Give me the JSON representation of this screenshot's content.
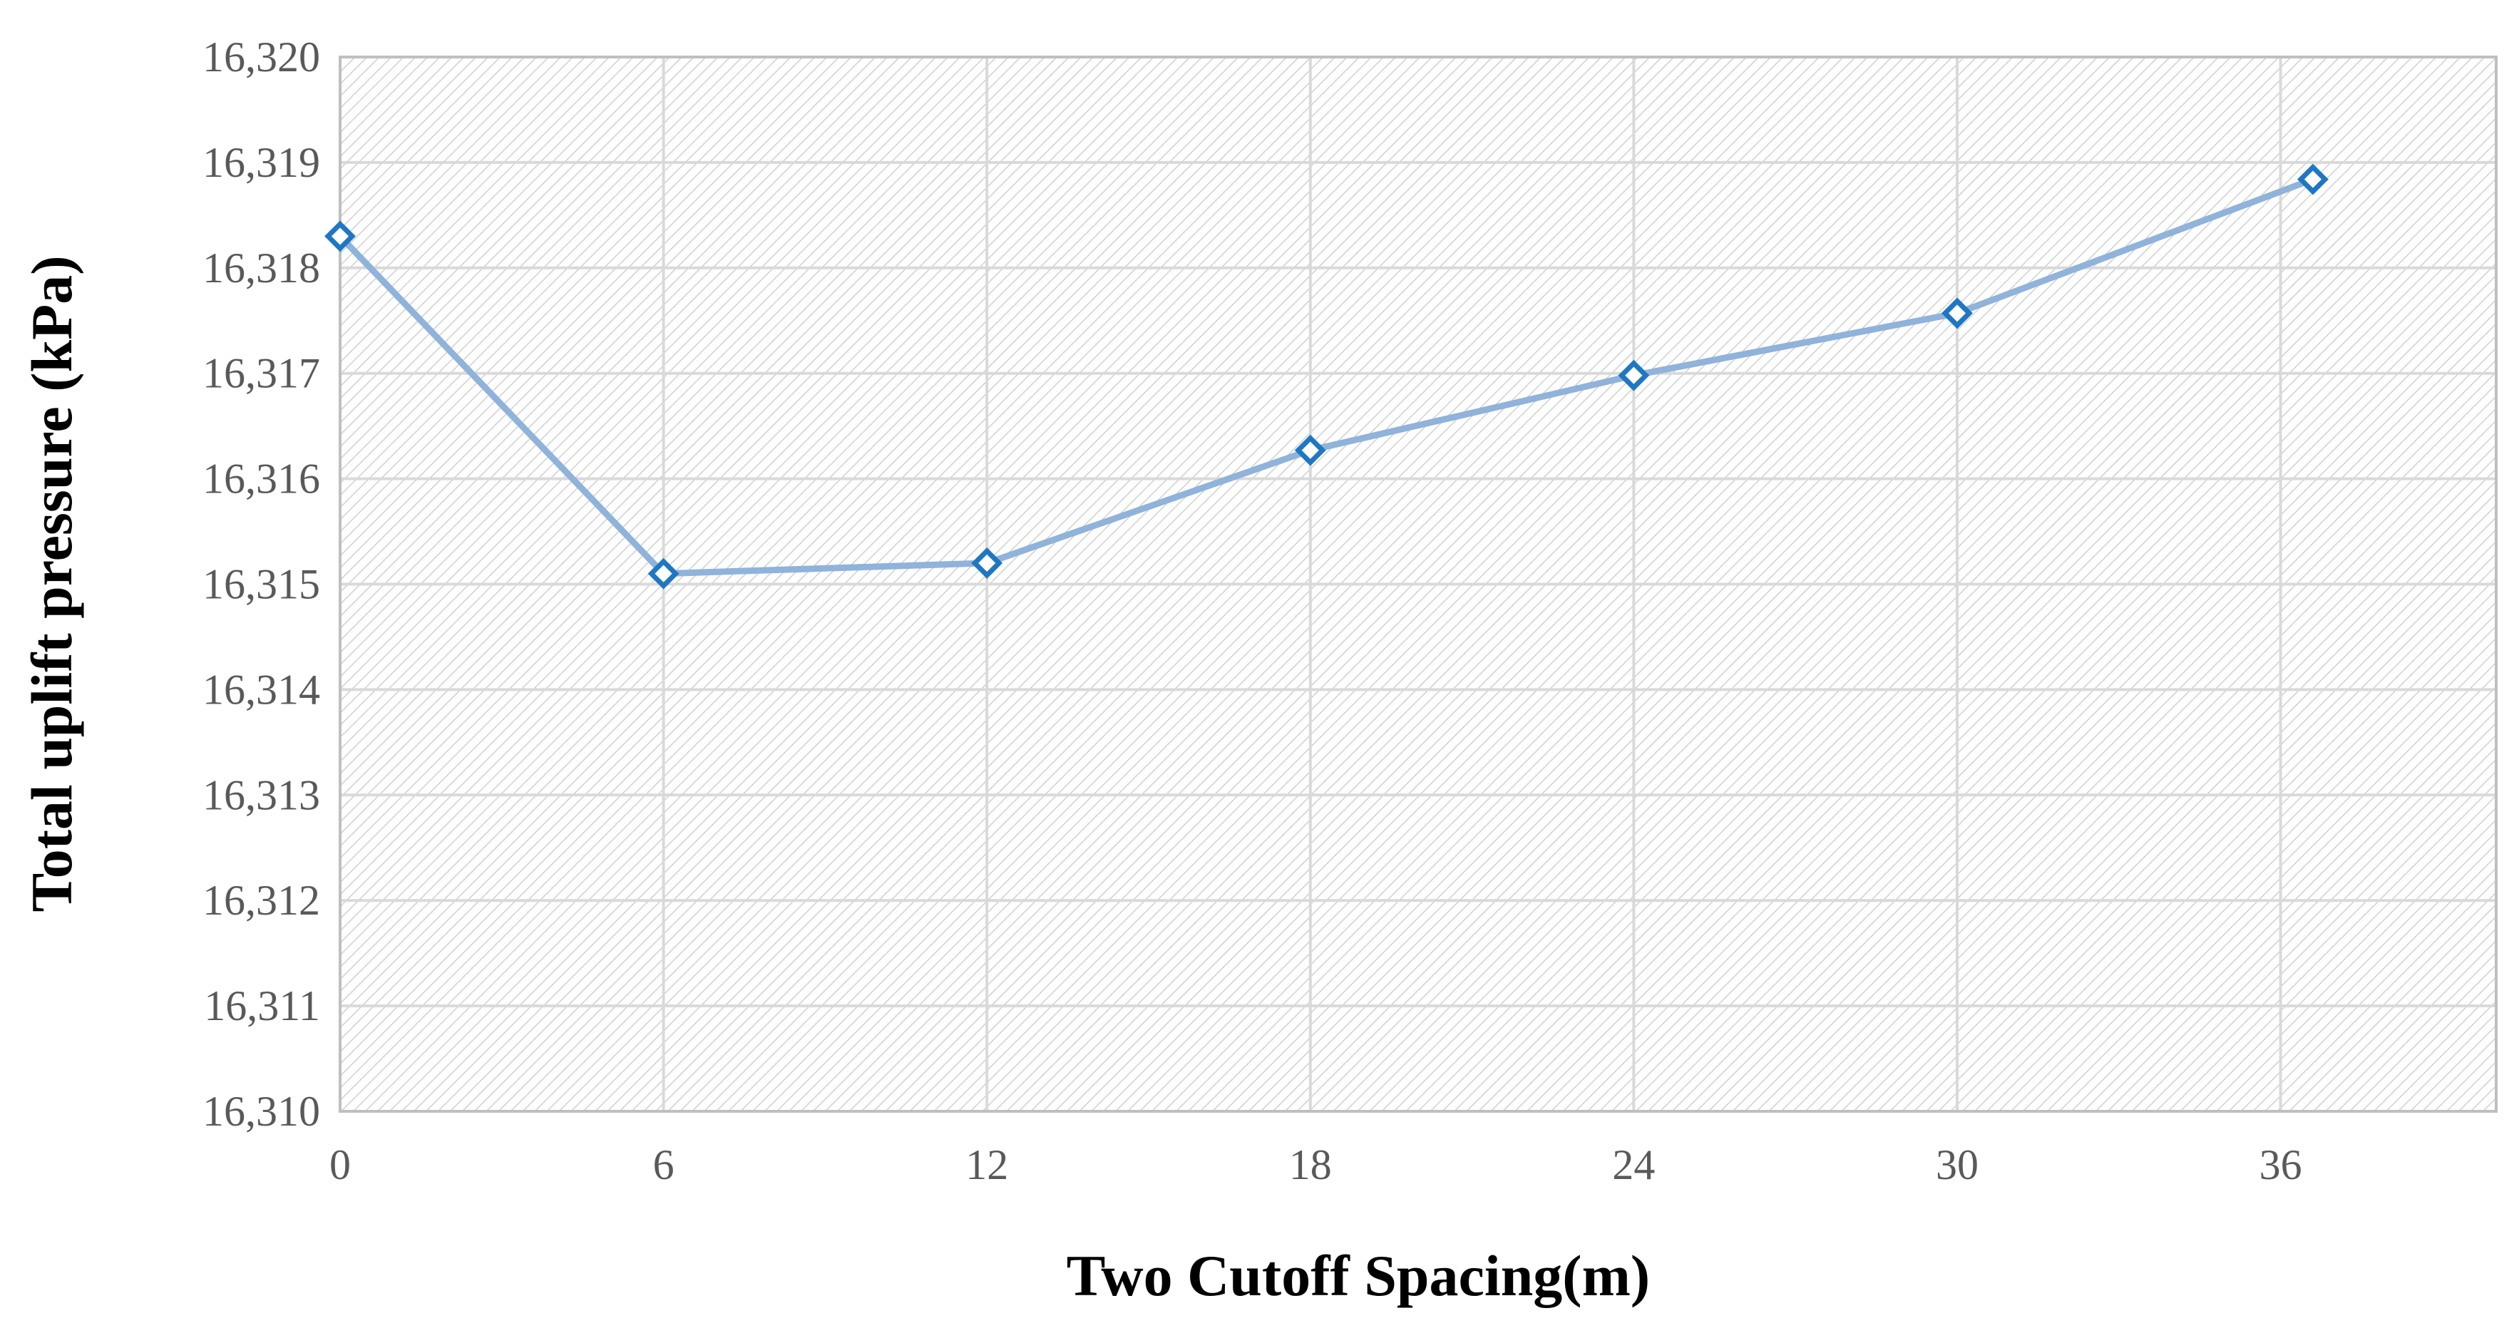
{
  "chart_data": {
    "type": "line",
    "title": "",
    "xlabel": "Two Cutoff Spacing(m)",
    "ylabel": "Total uplift pressure (kPa)",
    "x_tick_labels": [
      "0",
      "6",
      "12",
      "18",
      "24",
      "30",
      "36"
    ],
    "y_tick_labels": [
      "16,310",
      "16,311",
      "16,312",
      "16,313",
      "16,314",
      "16,315",
      "16,316",
      "16,317",
      "16,318",
      "16,319",
      "16,320"
    ],
    "xlim": [
      0,
      40
    ],
    "ylim": [
      16310,
      16320
    ],
    "grid": true,
    "series": [
      {
        "x": [
          0,
          6,
          12,
          18,
          24,
          30,
          36.6
        ],
        "values": [
          16318.3,
          16315.1,
          16315.2,
          16316.27,
          16316.98,
          16317.57,
          16318.84
        ]
      }
    ],
    "colors": {
      "line": "#8fb3da",
      "marker": "#1f77c4",
      "grid": "#d9d9d9",
      "hatch": "#cfcfcf",
      "axis_text": "#595959"
    }
  }
}
